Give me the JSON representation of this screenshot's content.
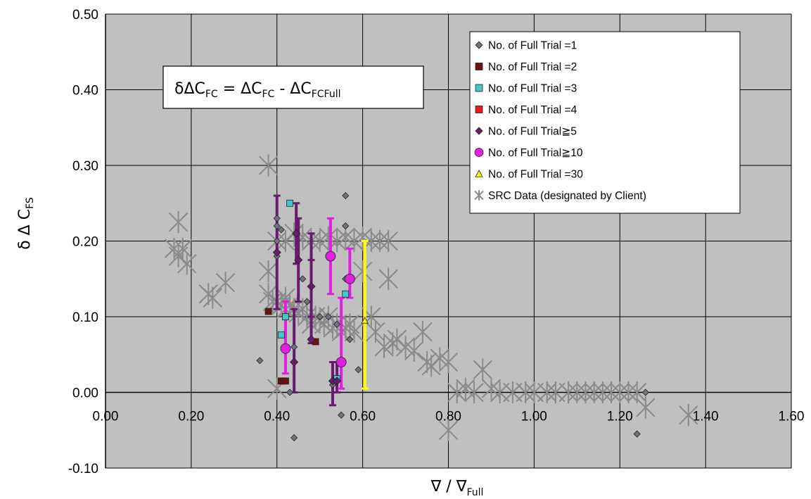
{
  "chart_data": {
    "type": "scatter",
    "xlabel": "∇ / ∇",
    "xlabel_sub": "Full",
    "ylabel": "δ Δ C",
    "ylabel_sub": "FS",
    "xlim": [
      0,
      1.6
    ],
    "ylim": [
      -0.1,
      0.5
    ],
    "x_ticks": [
      0,
      0.2,
      0.4,
      0.6,
      0.8,
      1.0,
      1.2,
      1.4,
      1.6
    ],
    "x_tick_labels": [
      "0.00",
      "0.20",
      "0.40",
      "0.60",
      "0.80",
      "1.00",
      "1.20",
      "1.40",
      "1.60"
    ],
    "y_ticks": [
      -0.1,
      0,
      0.1,
      0.2,
      0.3,
      0.4,
      0.5
    ],
    "y_tick_labels": [
      "-0.10",
      "0.00",
      "0.10",
      "0.20",
      "0.30",
      "0.40",
      "0.50"
    ],
    "grid": true,
    "legend_position": "top-right",
    "annotation": {
      "parts": [
        {
          "t": "δΔC",
          "s": ""
        },
        {
          "t": "FC",
          "s": "sub"
        },
        {
          "t": " = ΔC",
          "s": ""
        },
        {
          "t": "FC",
          "s": "sub"
        },
        {
          "t": " - ΔC",
          "s": ""
        },
        {
          "t": "FCFull",
          "s": "sub"
        }
      ]
    },
    "series": [
      {
        "name": "No. of Full Trial =1",
        "marker": "diamond",
        "color": "#6e7382",
        "points": [
          [
            0.36,
            0.042
          ],
          [
            0.4,
            0.18
          ],
          [
            0.4,
            0.2
          ],
          [
            0.4,
            0.22
          ],
          [
            0.4,
            0.23
          ],
          [
            0.41,
            0.215
          ],
          [
            0.42,
            0.015
          ],
          [
            0.43,
            0.0
          ],
          [
            0.44,
            0.06
          ],
          [
            0.44,
            -0.06
          ],
          [
            0.46,
            0.15
          ],
          [
            0.47,
            0.12
          ],
          [
            0.48,
            0.07
          ],
          [
            0.5,
            0.1
          ],
          [
            0.52,
            0.1
          ],
          [
            0.53,
            0.01
          ],
          [
            0.54,
            0.09
          ],
          [
            0.55,
            -0.03
          ],
          [
            0.56,
            0.26
          ],
          [
            0.56,
            0.22
          ],
          [
            0.56,
            0.15
          ],
          [
            0.57,
            0.07
          ],
          [
            0.59,
            0.03
          ],
          [
            1.24,
            -0.055
          ],
          [
            1.26,
            0.0
          ]
        ]
      },
      {
        "name": "No. of Full Trial =2",
        "marker": "square",
        "color": "#6e1010",
        "points": [
          [
            0.38,
            0.107
          ],
          [
            0.41,
            0.015
          ],
          [
            0.42,
            0.015
          ],
          [
            0.49,
            0.067
          ]
        ]
      },
      {
        "name": "No. of Full Trial =3",
        "marker": "square",
        "color": "#40c8c8",
        "points": [
          [
            0.41,
            0.076
          ],
          [
            0.43,
            0.25
          ],
          [
            0.54,
            0.018
          ],
          [
            0.56,
            0.13
          ],
          [
            0.42,
            0.1
          ]
        ]
      },
      {
        "name": "No. of Full Trial =4",
        "marker": "square",
        "color": "#e41a1c",
        "points": []
      },
      {
        "name": "No. of Full Trial≧5",
        "marker": "diamond",
        "color": "#6a1a6e",
        "points": [
          [
            0.4,
            0.185
          ],
          [
            0.445,
            0.21
          ],
          [
            0.44,
            0.04
          ],
          [
            0.45,
            0.175
          ],
          [
            0.48,
            0.14
          ],
          [
            0.48,
            0.07
          ],
          [
            0.53,
            0.015
          ],
          [
            0.54,
            0.015
          ]
        ],
        "errors": [
          [
            0.4,
            0.11,
            0.26
          ],
          [
            0.445,
            0.17,
            0.25
          ],
          [
            0.44,
            0.0,
            0.11
          ],
          [
            0.45,
            0.12,
            0.23
          ],
          [
            0.48,
            0.1,
            0.21
          ],
          [
            0.48,
            0.065,
            0.175
          ],
          [
            0.53,
            -0.017,
            0.04
          ],
          [
            0.54,
            0.0,
            0.04
          ]
        ]
      },
      {
        "name": "No. of Full Trial≧10",
        "marker": "circle",
        "color": "#e020e0",
        "points": [
          [
            0.42,
            0.058
          ],
          [
            0.525,
            0.18
          ],
          [
            0.55,
            0.04
          ],
          [
            0.57,
            0.15
          ]
        ],
        "errors": [
          [
            0.42,
            0.025,
            0.12
          ],
          [
            0.525,
            0.13,
            0.23
          ],
          [
            0.55,
            0.005,
            0.125
          ],
          [
            0.57,
            0.125,
            0.19
          ]
        ]
      },
      {
        "name": "No. of Full Trial =30",
        "marker": "triangle",
        "color": "#ffff00",
        "points": [
          [
            0.605,
            0.095
          ]
        ],
        "errors": [
          [
            0.605,
            0.005,
            0.2
          ]
        ]
      },
      {
        "name": "SRC Data (designated by Client)",
        "marker": "asterisk",
        "color": "#8a8a8a",
        "points": [
          [
            0.16,
            0.19
          ],
          [
            0.17,
            0.225
          ],
          [
            0.17,
            0.18
          ],
          [
            0.18,
            0.19
          ],
          [
            0.19,
            0.17
          ],
          [
            0.24,
            0.13
          ],
          [
            0.25,
            0.125
          ],
          [
            0.28,
            0.145
          ],
          [
            0.38,
            0.3
          ],
          [
            0.38,
            0.16
          ],
          [
            0.38,
            0.13
          ],
          [
            0.39,
            0.12
          ],
          [
            0.4,
            0.005
          ],
          [
            0.4,
            0.12
          ],
          [
            0.41,
            0.115
          ],
          [
            0.42,
            0.125
          ],
          [
            0.42,
            0.11
          ],
          [
            0.43,
            0.115
          ],
          [
            0.44,
            0.11
          ],
          [
            0.45,
            0.105
          ],
          [
            0.46,
            0.11
          ],
          [
            0.47,
            0.1
          ],
          [
            0.48,
            0.09
          ],
          [
            0.49,
            0.1
          ],
          [
            0.5,
            0.095
          ],
          [
            0.51,
            0.09
          ],
          [
            0.52,
            0.1
          ],
          [
            0.53,
            0.085
          ],
          [
            0.54,
            0.09
          ],
          [
            0.55,
            0.08
          ],
          [
            0.56,
            0.085
          ],
          [
            0.57,
            0.09
          ],
          [
            0.58,
            0.08
          ],
          [
            0.6,
            0.16
          ],
          [
            0.62,
            0.1
          ],
          [
            0.63,
            0.08
          ],
          [
            0.65,
            0.06
          ],
          [
            0.66,
            0.15
          ],
          [
            0.67,
            0.065
          ],
          [
            0.68,
            0.07
          ],
          [
            0.7,
            0.06
          ],
          [
            0.72,
            0.055
          ],
          [
            0.74,
            0.08
          ],
          [
            0.75,
            0.04
          ],
          [
            0.76,
            0.035
          ],
          [
            0.78,
            0.045
          ],
          [
            0.8,
            0.04
          ],
          [
            0.8,
            -0.05
          ],
          [
            0.82,
            0.0
          ],
          [
            0.84,
            0.005
          ],
          [
            0.86,
            0.0
          ],
          [
            0.88,
            0.03
          ],
          [
            0.9,
            0.005
          ],
          [
            0.92,
            0.0
          ],
          [
            0.95,
            0.0
          ],
          [
            0.98,
            0.0
          ],
          [
            1.0,
            0.0
          ],
          [
            1.03,
            0.0
          ],
          [
            1.05,
            0.0
          ],
          [
            1.08,
            0.0
          ],
          [
            1.1,
            0.0
          ],
          [
            1.12,
            0.0
          ],
          [
            1.14,
            0.0
          ],
          [
            1.16,
            0.0
          ],
          [
            1.18,
            0.0
          ],
          [
            1.2,
            0.0
          ],
          [
            1.22,
            0.0
          ],
          [
            1.24,
            0.0
          ],
          [
            1.26,
            -0.02
          ],
          [
            1.36,
            -0.03
          ],
          [
            0.4,
            0.2
          ],
          [
            0.42,
            0.2
          ],
          [
            0.44,
            0.21
          ],
          [
            0.46,
            0.205
          ],
          [
            0.48,
            0.2
          ],
          [
            0.5,
            0.2
          ],
          [
            0.52,
            0.205
          ],
          [
            0.54,
            0.2
          ],
          [
            0.56,
            0.205
          ],
          [
            0.58,
            0.2
          ],
          [
            0.6,
            0.205
          ],
          [
            0.62,
            0.2
          ],
          [
            0.64,
            0.2
          ],
          [
            0.66,
            0.2
          ]
        ]
      }
    ]
  }
}
